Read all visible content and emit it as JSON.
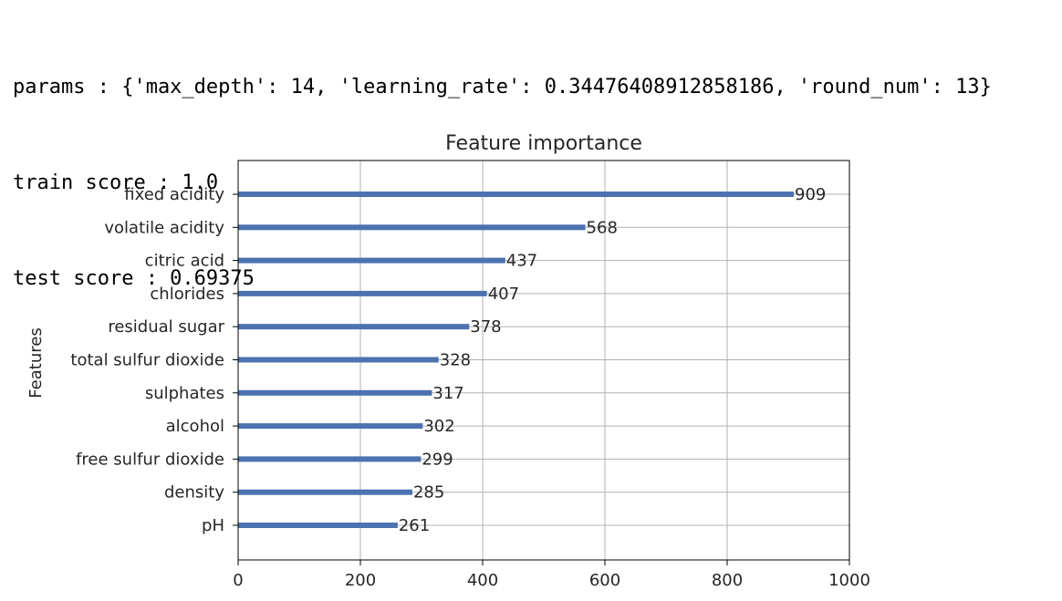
{
  "output": {
    "params_line": "params : {'max_depth': 14, 'learning_rate': 0.34476408912858186, 'round_num': 13}",
    "train_line": "train score : 1.0",
    "test_line": "test score : 0.69375"
  },
  "chart_data": {
    "type": "bar",
    "orientation": "horizontal",
    "title": "Feature importance",
    "xlabel": "",
    "ylabel": "Features",
    "categories": [
      "fixed acidity",
      "volatile acidity",
      "citric acid",
      "chlorides",
      "residual sugar",
      "total sulfur dioxide",
      "sulphates",
      "alcohol",
      "free sulfur dioxide",
      "density",
      "pH"
    ],
    "values": [
      909,
      568,
      437,
      407,
      378,
      328,
      317,
      302,
      299,
      285,
      261
    ],
    "xlim": [
      0,
      1000
    ],
    "xticks": [
      0,
      200,
      400,
      600,
      800,
      1000
    ],
    "grid": true,
    "colors": {
      "bar": "#4c72b0",
      "grid": "#b0b0b0",
      "axis": "#000000"
    }
  }
}
